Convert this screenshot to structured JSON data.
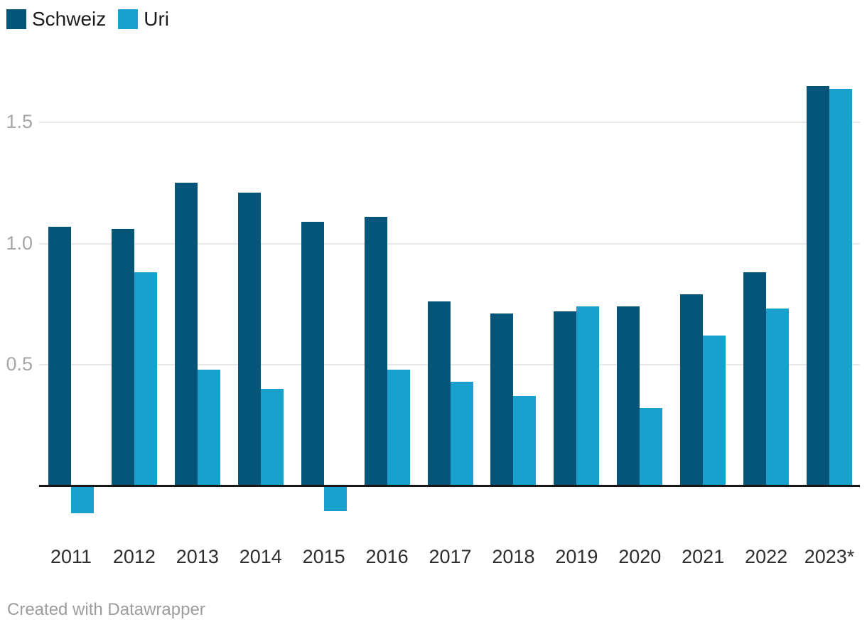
{
  "legend": {
    "items": [
      {
        "label": "Schweiz",
        "color": "#045577"
      },
      {
        "label": "Uri",
        "color": "#18a1cd"
      }
    ]
  },
  "footer": {
    "text": "Created with Datawrapper"
  },
  "chart_data": {
    "type": "bar",
    "title": "",
    "xlabel": "",
    "ylabel": "",
    "categories": [
      "2011",
      "2012",
      "2013",
      "2014",
      "2015",
      "2016",
      "2017",
      "2018",
      "2019",
      "2020",
      "2021",
      "2022",
      "2023*"
    ],
    "series": [
      {
        "name": "Schweiz",
        "color": "#045577",
        "values": [
          1.07,
          1.06,
          1.25,
          1.21,
          1.09,
          1.11,
          0.76,
          0.71,
          0.72,
          0.74,
          0.79,
          0.88,
          1.65
        ]
      },
      {
        "name": "Uri",
        "color": "#18a1cd",
        "values": [
          -0.11,
          0.88,
          0.48,
          0.4,
          -0.1,
          0.48,
          0.43,
          0.37,
          0.74,
          0.32,
          0.62,
          0.73,
          1.64
        ]
      }
    ],
    "yticks": [
      {
        "value": 0.5,
        "label": "0.5"
      },
      {
        "value": 1.0,
        "label": "1.0"
      },
      {
        "value": 1.5,
        "label": "1.5"
      }
    ],
    "ylim": [
      -0.15,
      1.75
    ],
    "grid": true,
    "baseline_value": 0,
    "legend_position": "top-left",
    "colors": {
      "gridline": "#e8e8e8",
      "baseline": "#17171a",
      "ytick_text": "#a6a6a6",
      "xtick_text": "#2e2e2e"
    }
  }
}
